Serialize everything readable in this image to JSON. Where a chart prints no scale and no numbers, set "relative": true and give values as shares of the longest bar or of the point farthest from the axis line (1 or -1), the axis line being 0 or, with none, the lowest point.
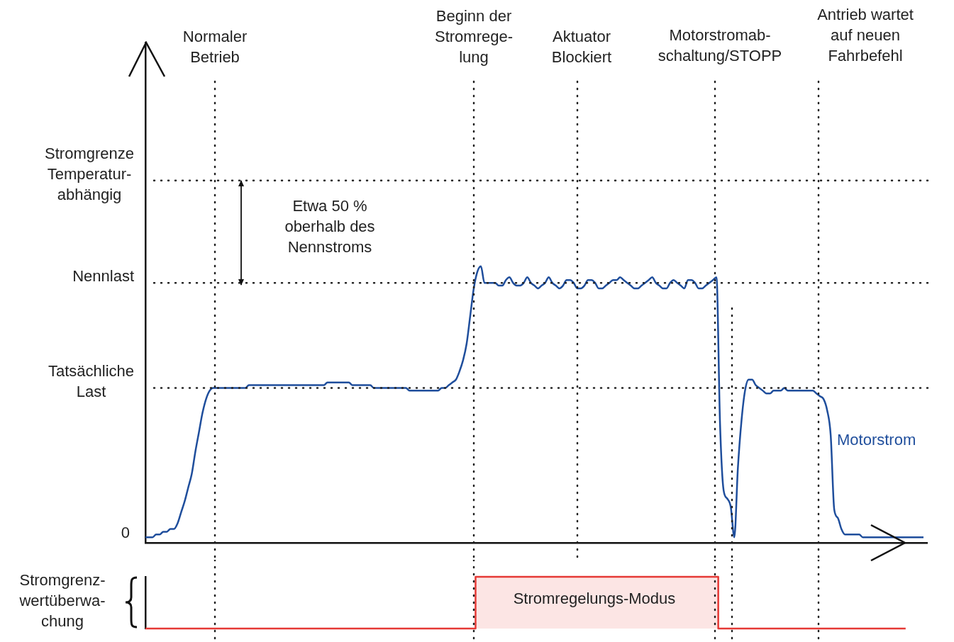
{
  "chart_data": [
    {
      "type": "line",
      "relative": true,
      "tick_labels": false,
      "grid": false,
      "legend": false,
      "marker": "none",
      "line_style": "solid",
      "categories": [
        null,
        null,
        null,
        null,
        null,
        null,
        null,
        null,
        null,
        null,
        null,
        null,
        null,
        null,
        null,
        null,
        null,
        null,
        null,
        null,
        null,
        null,
        null,
        null,
        null,
        null,
        null,
        null,
        null,
        null,
        null,
        null,
        null,
        null,
        null,
        null,
        null,
        null,
        null,
        null,
        null,
        null,
        null,
        null,
        null,
        null,
        null,
        null,
        null,
        null,
        null,
        null,
        null,
        null,
        null,
        null,
        null,
        null,
        null,
        null,
        null,
        null,
        null,
        null,
        null,
        null,
        null,
        null,
        null,
        null,
        null,
        null,
        null,
        null,
        null,
        null,
        null,
        null,
        null,
        null,
        null,
        null,
        null,
        null,
        null,
        null,
        null,
        null,
        null,
        null,
        null,
        null,
        null,
        null,
        null,
        null,
        null,
        null,
        null,
        null,
        null,
        null,
        null,
        null,
        null,
        null,
        null,
        null,
        null,
        null,
        null,
        null,
        null,
        null,
        null,
        null,
        null,
        null,
        null,
        null,
        null,
        null,
        null,
        null,
        null,
        null,
        null,
        null,
        null,
        null,
        null,
        null,
        null,
        null,
        null,
        null,
        null,
        null,
        null,
        null,
        null,
        null,
        null,
        null,
        null,
        null,
        null,
        null,
        null,
        null,
        null,
        null,
        null,
        null,
        null,
        null,
        null,
        null,
        null,
        null,
        null,
        null,
        null,
        null,
        null,
        null,
        null,
        null,
        null,
        null,
        null,
        null,
        null,
        null,
        null,
        null,
        null,
        null,
        null,
        null,
        null,
        null,
        null,
        null,
        null,
        null,
        null,
        null,
        null,
        null,
        null,
        null,
        null,
        null,
        null,
        null,
        null,
        null,
        null,
        null,
        null,
        null,
        null,
        null,
        null,
        null,
        null,
        null,
        null,
        null,
        null,
        null,
        null,
        null,
        null,
        null,
        null,
        null,
        null,
        null
      ],
      "series": [
        {
          "name": "Motorstrom",
          "color": "#1f4e9c",
          "values": [
            0.02,
            0.02,
            0.02,
            0.03,
            0.03,
            0.04,
            0.04,
            0.05,
            0.05,
            0.07,
            0.11,
            0.15,
            0.2,
            0.25,
            0.33,
            0.4,
            0.47,
            0.52,
            0.55,
            0.56,
            0.56,
            0.56,
            0.56,
            0.56,
            0.56,
            0.56,
            0.56,
            0.56,
            0.56,
            0.57,
            0.57,
            0.57,
            0.57,
            0.57,
            0.57,
            0.57,
            0.57,
            0.57,
            0.57,
            0.57,
            0.57,
            0.57,
            0.57,
            0.57,
            0.57,
            0.57,
            0.57,
            0.57,
            0.57,
            0.57,
            0.57,
            0.58,
            0.58,
            0.58,
            0.58,
            0.58,
            0.58,
            0.58,
            0.57,
            0.57,
            0.57,
            0.57,
            0.57,
            0.57,
            0.56,
            0.56,
            0.56,
            0.56,
            0.56,
            0.56,
            0.56,
            0.56,
            0.56,
            0.56,
            0.55,
            0.55,
            0.55,
            0.55,
            0.55,
            0.55,
            0.55,
            0.55,
            0.55,
            0.56,
            0.56,
            0.57,
            0.58,
            0.59,
            0.62,
            0.66,
            0.72,
            0.82,
            0.92,
            0.98,
            1.0,
            0.94,
            0.94,
            0.94,
            0.94,
            0.93,
            0.93,
            0.95,
            0.96,
            0.94,
            0.93,
            0.93,
            0.94,
            0.96,
            0.94,
            0.93,
            0.92,
            0.93,
            0.94,
            0.96,
            0.94,
            0.93,
            0.92,
            0.93,
            0.95,
            0.95,
            0.94,
            0.92,
            0.92,
            0.93,
            0.95,
            0.95,
            0.94,
            0.92,
            0.92,
            0.93,
            0.94,
            0.95,
            0.95,
            0.96,
            0.95,
            0.94,
            0.93,
            0.92,
            0.92,
            0.93,
            0.94,
            0.95,
            0.96,
            0.94,
            0.93,
            0.92,
            0.92,
            0.94,
            0.95,
            0.94,
            0.93,
            0.92,
            0.95,
            0.95,
            0.94,
            0.92,
            0.92,
            0.93,
            0.94,
            0.95,
            0.96,
            0.43,
            0.19,
            0.16,
            0.13,
            0.02,
            0.27,
            0.44,
            0.55,
            0.59,
            0.59,
            0.57,
            0.56,
            0.55,
            0.54,
            0.54,
            0.55,
            0.55,
            0.55,
            0.56,
            0.55,
            0.55,
            0.55,
            0.55,
            0.55,
            0.55,
            0.55,
            0.55,
            0.54,
            0.53,
            0.52,
            0.48,
            0.39,
            0.12,
            0.09,
            0.05,
            0.03,
            0.03,
            0.03,
            0.03,
            0.03,
            0.02,
            0.02,
            0.02,
            0.02,
            0.02,
            0.02,
            0.02,
            0.02,
            0.02,
            0.02,
            0.02,
            0.02,
            0.02,
            0.02,
            0.02,
            0.02,
            0.02,
            0.02,
            null
          ]
        }
      ],
      "ref_lines": [
        {
          "axis": "y",
          "value": 1.31,
          "label": "Stromgrenze\nTemperatur-\nabhängig",
          "line_style": "dotted"
        },
        {
          "axis": "y",
          "value": 0.94,
          "label": "Nennlast",
          "line_style": "dotted"
        },
        {
          "axis": "y",
          "value": 0.56,
          "label": "Tatsächliche\nLast",
          "line_style": "dotted"
        }
      ],
      "annotations": [
        "Etwa 50 %\noberhalb des\nNennstroms",
        "0",
        "Normaler\nBetrieb",
        "Beginn der\nStromrege-\nlung",
        "Aktuator\nBlockiert",
        "Motorstromab-\nschaltung/STOPP",
        "Antrieb wartet\nauf neuen\nFahrbefehl"
      ]
    },
    {
      "type": "step",
      "relative": true,
      "tick_labels": false,
      "grid": false,
      "legend": false,
      "marker": "none",
      "ylabel": "Stromgrenz-\nwertüberwa-\nchung",
      "categories": [
        null,
        null,
        null,
        null,
        null,
        null,
        null,
        null,
        null,
        null,
        null,
        null,
        null,
        null,
        null,
        null,
        null,
        null,
        null,
        null,
        null,
        null,
        null,
        null,
        null,
        null,
        null,
        null,
        null,
        null,
        null,
        null,
        null,
        null,
        null,
        null,
        null,
        null,
        null,
        null,
        null,
        null,
        null,
        null,
        null,
        null,
        null,
        null,
        null,
        null,
        null,
        null,
        null,
        null,
        null,
        null,
        null,
        null,
        null,
        null,
        null,
        null,
        null,
        null,
        null,
        null,
        null,
        null,
        null,
        null,
        null,
        null,
        null,
        null,
        null,
        null,
        null,
        null,
        null,
        null,
        null,
        null,
        null,
        null,
        null,
        null,
        null,
        null,
        null,
        null,
        null,
        null,
        null,
        null,
        null,
        null,
        null,
        null,
        null,
        null,
        null,
        null,
        null,
        null,
        null,
        null,
        null,
        null,
        null,
        null,
        null,
        null,
        null,
        null,
        null,
        null,
        null,
        null,
        null,
        null,
        null,
        null,
        null,
        null,
        null,
        null,
        null,
        null,
        null,
        null,
        null,
        null,
        null,
        null,
        null,
        null,
        null,
        null,
        null,
        null,
        null,
        null,
        null,
        null,
        null,
        null,
        null,
        null,
        null,
        null,
        null,
        null,
        null,
        null,
        null,
        null,
        null,
        null,
        null,
        null,
        null,
        null,
        null,
        null,
        null,
        null,
        null,
        null,
        null,
        null,
        null,
        null,
        null,
        null,
        null,
        null,
        null,
        null,
        null,
        null,
        null,
        null,
        null,
        null,
        null,
        null,
        null,
        null,
        null,
        null,
        null,
        null,
        null,
        null,
        null,
        null,
        null,
        null,
        null,
        null,
        null,
        null,
        null,
        null,
        null,
        null,
        null,
        null,
        null,
        null,
        null,
        null,
        null,
        null,
        null,
        null,
        null,
        null,
        null,
        null
      ],
      "series": [
        {
          "color": "#e53935",
          "values": [
            0,
            0,
            0,
            0,
            0,
            0,
            0,
            0,
            0,
            0,
            0,
            0,
            0,
            0,
            0,
            0,
            0,
            0,
            0,
            0,
            0,
            0,
            0,
            0,
            0,
            0,
            0,
            0,
            0,
            0,
            0,
            0,
            0,
            0,
            0,
            0,
            0,
            0,
            0,
            0,
            0,
            0,
            0,
            0,
            0,
            0,
            0,
            0,
            0,
            0,
            0,
            0,
            0,
            0,
            0,
            0,
            0,
            0,
            0,
            0,
            0,
            0,
            0,
            0,
            0,
            0,
            0,
            0,
            0,
            0,
            0,
            0,
            0,
            0,
            0,
            0,
            0,
            0,
            0,
            0,
            0,
            0,
            0,
            0,
            0,
            0,
            0,
            0,
            0,
            0,
            0,
            0,
            0,
            1,
            1,
            1,
            1,
            1,
            1,
            1,
            1,
            1,
            1,
            1,
            1,
            1,
            1,
            1,
            1,
            1,
            1,
            1,
            1,
            1,
            1,
            1,
            1,
            1,
            1,
            1,
            1,
            1,
            1,
            1,
            1,
            1,
            1,
            1,
            1,
            1,
            1,
            1,
            1,
            1,
            1,
            1,
            1,
            1,
            1,
            1,
            1,
            1,
            1,
            1,
            1,
            1,
            1,
            1,
            1,
            1,
            1,
            1,
            1,
            1,
            1,
            1,
            1,
            1,
            1,
            1,
            1,
            0,
            0,
            0,
            0,
            0,
            0,
            0,
            0,
            0,
            0,
            0,
            0,
            0,
            0,
            0,
            0,
            0,
            0,
            0,
            0,
            0,
            0,
            0,
            0,
            0,
            0,
            0,
            0,
            0,
            0,
            0,
            0,
            0,
            0,
            0,
            0,
            0,
            0,
            0,
            0,
            0,
            0,
            0,
            0,
            0,
            0,
            0,
            0,
            0,
            0,
            0,
            0,
            0,
            null,
            null,
            null,
            null,
            null,
            null
          ]
        }
      ],
      "annotations": [
        "Stromregelungs-Modus"
      ]
    }
  ]
}
